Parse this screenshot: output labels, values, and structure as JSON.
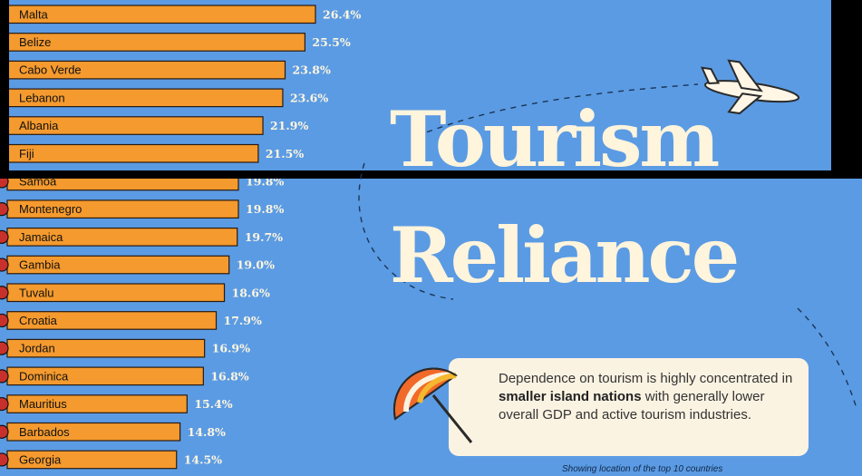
{
  "chart_data": {
    "type": "bar",
    "orientation": "horizontal",
    "categories": [
      "Malta",
      "Belize",
      "Cabo Verde",
      "Lebanon",
      "Albania",
      "Fiji",
      "Samoa",
      "Montenegro",
      "Jamaica",
      "Gambia",
      "Tuvalu",
      "Croatia",
      "Jordan",
      "Dominica",
      "Mauritius",
      "Barbados",
      "Georgia"
    ],
    "values": [
      26.4,
      25.5,
      23.8,
      23.6,
      21.9,
      21.5,
      19.8,
      19.8,
      19.7,
      19.0,
      18.6,
      17.9,
      16.9,
      16.8,
      15.4,
      14.8,
      14.5
    ],
    "value_labels": [
      "26.4%",
      "25.5%",
      "23.8%",
      "23.6%",
      "21.9%",
      "21.5%",
      "19.8%",
      "19.8%",
      "19.7%",
      "19.0%",
      "18.6%",
      "17.9%",
      "16.9%",
      "16.8%",
      "15.4%",
      "14.8%",
      "14.5%"
    ],
    "unit": "%",
    "bar_color": "#f59a2e",
    "bar_stroke": "#2a1a10"
  },
  "title": {
    "line1": "Tourism",
    "line2": "Reliance"
  },
  "info_box": {
    "text_before": "Dependence on tourism is highly concentrated in ",
    "bold": "smaller island nations",
    "text_after": " with generally lower overall GDP and active tourism industries."
  },
  "footnote": "Showing location of the top 10 countries",
  "icons": [
    "airplane-icon",
    "beach-umbrella-icon",
    "flag-icon"
  ],
  "colors": {
    "background": "#5b9be3",
    "title": "#fff4dc",
    "box": "#fbf3e2"
  }
}
